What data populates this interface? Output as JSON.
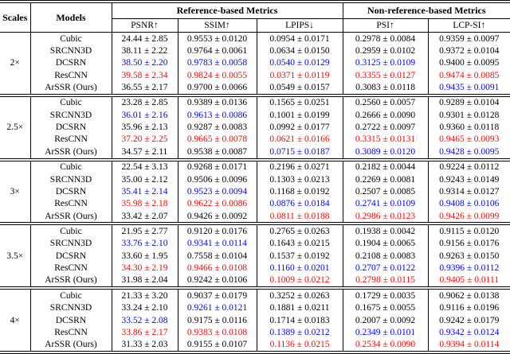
{
  "colors": {
    "best": "#ff0000",
    "second_best": "#0000ff",
    "default_text": "#000000",
    "background": "#ffffff"
  },
  "table": {
    "header": {
      "scales": "Scales",
      "models": "Models",
      "group_ref": "Reference-based Metrics",
      "group_nonref": "Non-reference-based Metrics",
      "metrics": [
        "PSNR↑",
        "SSIM↑",
        "LPIPS↓",
        "PSI↑",
        "LCP-SI↑"
      ]
    },
    "sections": [
      {
        "scale": "2×",
        "rows": [
          {
            "model": "Cubic",
            "values": [
              {
                "text": "24.44 ± 2.85",
                "color": "black"
              },
              {
                "text": "0.9553 ± 0.0120",
                "color": "black"
              },
              {
                "text": "0.0954 ± 0.0171",
                "color": "black"
              },
              {
                "text": "0.2978 ± 0.0084",
                "color": "black"
              },
              {
                "text": "0.9359 ± 0.0097",
                "color": "black"
              }
            ]
          },
          {
            "model": "SRCNN3D",
            "values": [
              {
                "text": "38.11 ± 2.22",
                "color": "black"
              },
              {
                "text": "0.9764 ± 0.0061",
                "color": "black"
              },
              {
                "text": "0.0634 ± 0.0150",
                "color": "black"
              },
              {
                "text": "0.2959 ± 0.0102",
                "color": "black"
              },
              {
                "text": "0.9372 ± 0.0104",
                "color": "black"
              }
            ]
          },
          {
            "model": "DCSRN",
            "values": [
              {
                "text": "38.50 ± 2.20",
                "color": "blue"
              },
              {
                "text": "0.9783 ± 0.0058",
                "color": "blue"
              },
              {
                "text": "0.0540 ± 0.0129",
                "color": "blue"
              },
              {
                "text": "0.3125 ± 0.0109",
                "color": "blue"
              },
              {
                "text": "0.9400 ± 0.0095",
                "color": "black"
              }
            ]
          },
          {
            "model": "ResCNN",
            "values": [
              {
                "text": "39.58 ± 2.34",
                "color": "red"
              },
              {
                "text": "0.9824 ± 0.0055",
                "color": "red"
              },
              {
                "text": "0.0371 ± 0.0119",
                "color": "red"
              },
              {
                "text": "0.3355 ± 0.0127",
                "color": "red"
              },
              {
                "text": "0.9474 ± 0.0085",
                "color": "red"
              }
            ]
          },
          {
            "model": "ArSSR (Ours)",
            "values": [
              {
                "text": "36.55 ± 2.17",
                "color": "black"
              },
              {
                "text": "0.9700 ± 0.0066",
                "color": "black"
              },
              {
                "text": "0.0549 ± 0.0157",
                "color": "black"
              },
              {
                "text": "0.3083 ± 0.0118",
                "color": "black"
              },
              {
                "text": "0.9435 ± 0.0091",
                "color": "blue"
              }
            ]
          }
        ]
      },
      {
        "scale": "2.5×",
        "rows": [
          {
            "model": "Cubic",
            "values": [
              {
                "text": "23.28 ± 2.85",
                "color": "black"
              },
              {
                "text": "0.9389 ± 0.0136",
                "color": "black"
              },
              {
                "text": "0.1565 ± 0.0251",
                "color": "black"
              },
              {
                "text": "0.2560 ± 0.0057",
                "color": "black"
              },
              {
                "text": "0.9289 ± 0.0104",
                "color": "black"
              }
            ]
          },
          {
            "model": "SRCNN3D",
            "values": [
              {
                "text": "36.01 ± 2.16",
                "color": "blue"
              },
              {
                "text": "0.9613 ± 0.0086",
                "color": "blue"
              },
              {
                "text": "0.1001 ± 0.0199",
                "color": "black"
              },
              {
                "text": "0.2666 ± 0.0090",
                "color": "black"
              },
              {
                "text": "0.9301 ± 0.0128",
                "color": "black"
              }
            ]
          },
          {
            "model": "DCSRN",
            "values": [
              {
                "text": "35.96 ± 2.13",
                "color": "black"
              },
              {
                "text": "0.9287 ± 0.0083",
                "color": "black"
              },
              {
                "text": "0.0992 ± 0.0177",
                "color": "black"
              },
              {
                "text": "0.2722 ± 0.0097",
                "color": "black"
              },
              {
                "text": "0.9360 ± 0.0118",
                "color": "black"
              }
            ]
          },
          {
            "model": "ResCNN",
            "values": [
              {
                "text": "37.20 ± 2.25",
                "color": "red"
              },
              {
                "text": "0.9665 ± 0.0078",
                "color": "red"
              },
              {
                "text": "0.0621 ± 0.0166",
                "color": "red"
              },
              {
                "text": "0.3315 ± 0.0131",
                "color": "red"
              },
              {
                "text": "0.9465 ± 0.0093",
                "color": "red"
              }
            ]
          },
          {
            "model": "ArSSR (Ours)",
            "values": [
              {
                "text": "34.57 ± 2.11",
                "color": "black"
              },
              {
                "text": "0.9538 ± 0.0087",
                "color": "black"
              },
              {
                "text": "0.0715 ± 0.0187",
                "color": "blue"
              },
              {
                "text": "0.3089 ± 0.0120",
                "color": "blue"
              },
              {
                "text": "0.9428 ± 0.0095",
                "color": "blue"
              }
            ]
          }
        ]
      },
      {
        "scale": "3×",
        "rows": [
          {
            "model": "Cubic",
            "values": [
              {
                "text": "22.54 ± 3.13",
                "color": "black"
              },
              {
                "text": "0.9268 ± 0.0171",
                "color": "black"
              },
              {
                "text": "0.2196 ± 0.0271",
                "color": "black"
              },
              {
                "text": "0.2182 ± 0.0044",
                "color": "black"
              },
              {
                "text": "0.9224 ± 0.0112",
                "color": "black"
              }
            ]
          },
          {
            "model": "SRCNN3D",
            "values": [
              {
                "text": "35.00 ± 2.12",
                "color": "black"
              },
              {
                "text": "0.9506 ± 0.0096",
                "color": "black"
              },
              {
                "text": "0.1303 ± 0.0213",
                "color": "black"
              },
              {
                "text": "0.2269 ± 0.0081",
                "color": "black"
              },
              {
                "text": "0.9243 ± 0.0149",
                "color": "black"
              }
            ]
          },
          {
            "model": "DCSRN",
            "values": [
              {
                "text": "35.41 ± 2.14",
                "color": "blue"
              },
              {
                "text": "0.9523 ± 0.0094",
                "color": "blue"
              },
              {
                "text": "0.1168 ± 0.0192",
                "color": "black"
              },
              {
                "text": "0.2507 ± 0.0085",
                "color": "black"
              },
              {
                "text": "0.9314 ± 0.0127",
                "color": "black"
              }
            ]
          },
          {
            "model": "ResCNN",
            "values": [
              {
                "text": "35.98 ± 2.18",
                "color": "red"
              },
              {
                "text": "0.9622 ± 0.0086",
                "color": "red"
              },
              {
                "text": "0.0876 ± 0.0184",
                "color": "blue"
              },
              {
                "text": "0.2741 ± 0.0109",
                "color": "blue"
              },
              {
                "text": "0.9408 ± 0.0106",
                "color": "blue"
              }
            ]
          },
          {
            "model": "ArSSR (Ours)",
            "values": [
              {
                "text": "33.42 ± 2.07",
                "color": "black"
              },
              {
                "text": "0.9426 ± 0.0092",
                "color": "black"
              },
              {
                "text": "0.0811 ± 0.0188",
                "color": "red"
              },
              {
                "text": "0.2986 ± 0.0123",
                "color": "red"
              },
              {
                "text": "0.9426 ± 0.0099",
                "color": "red"
              }
            ]
          }
        ]
      },
      {
        "scale": "3.5×",
        "rows": [
          {
            "model": "Cubic",
            "values": [
              {
                "text": "21.95 ± 2.77",
                "color": "black"
              },
              {
                "text": "0.9120 ± 0.0176",
                "color": "black"
              },
              {
                "text": "0.2765 ± 0.0263",
                "color": "black"
              },
              {
                "text": "0.1938 ± 0.0042",
                "color": "black"
              },
              {
                "text": "0.9115 ± 0.0120",
                "color": "black"
              }
            ]
          },
          {
            "model": "SRCNN3D",
            "values": [
              {
                "text": "33.76 ± 2.10",
                "color": "blue"
              },
              {
                "text": "0.9341 ± 0.0114",
                "color": "blue"
              },
              {
                "text": "0.1643 ± 0.0215",
                "color": "black"
              },
              {
                "text": "0.1904 ± 0.0065",
                "color": "black"
              },
              {
                "text": "0.9156 ± 0.0176",
                "color": "black"
              }
            ]
          },
          {
            "model": "DCSRN",
            "values": [
              {
                "text": "33.60 ± 1.95",
                "color": "black"
              },
              {
                "text": "0.7558 ± 0.0104",
                "color": "black"
              },
              {
                "text": "0.1537 ± 0.0192",
                "color": "black"
              },
              {
                "text": "0.2108 ± 0.0083",
                "color": "black"
              },
              {
                "text": "0.9263 ± 0.0150",
                "color": "black"
              }
            ]
          },
          {
            "model": "ResCNN",
            "values": [
              {
                "text": "34.30 ± 2.19",
                "color": "red"
              },
              {
                "text": "0.9466 ± 0.0108",
                "color": "red"
              },
              {
                "text": "0.1160 ± 0.0201",
                "color": "blue"
              },
              {
                "text": "0.2707 ± 0.0122",
                "color": "blue"
              },
              {
                "text": "0.9396 ± 0.0112",
                "color": "blue"
              }
            ]
          },
          {
            "model": "ArSSR (Ours)",
            "values": [
              {
                "text": "31.98 ± 2.04",
                "color": "black"
              },
              {
                "text": "0.9242 ± 0.0106",
                "color": "black"
              },
              {
                "text": "0.1009 ± 0.0212",
                "color": "red"
              },
              {
                "text": "0.2798 ± 0.0115",
                "color": "red"
              },
              {
                "text": "0.9405 ± 0.0111",
                "color": "red"
              }
            ]
          }
        ]
      },
      {
        "scale": "4×",
        "rows": [
          {
            "model": "Cubic",
            "values": [
              {
                "text": "21.33 ± 3.20",
                "color": "black"
              },
              {
                "text": "0.9037 ± 0.0179",
                "color": "black"
              },
              {
                "text": "0.3252 ± 0.0263",
                "color": "black"
              },
              {
                "text": "0.1729 ± 0.0035",
                "color": "black"
              },
              {
                "text": "0.9062 ± 0.0138",
                "color": "black"
              }
            ]
          },
          {
            "model": "SRCNN3D",
            "values": [
              {
                "text": "33.24 ± 2.10",
                "color": "black"
              },
              {
                "text": "0.9261 ± 0.0121",
                "color": "blue"
              },
              {
                "text": "0.1881 ± 0.0211",
                "color": "black"
              },
              {
                "text": "0.1675 ± 0.0055",
                "color": "black"
              },
              {
                "text": "0.9116 ± 0.0196",
                "color": "black"
              }
            ]
          },
          {
            "model": "DCSRN",
            "values": [
              {
                "text": "33.52 ± 2.08",
                "color": "blue"
              },
              {
                "text": "0.9175 ± 0.0116",
                "color": "black"
              },
              {
                "text": "0.1714 ± 0.0183",
                "color": "black"
              },
              {
                "text": "0.2007 ± 0.0092",
                "color": "black"
              },
              {
                "text": "0.9242 ± 0.0179",
                "color": "black"
              }
            ]
          },
          {
            "model": "ResCNN",
            "values": [
              {
                "text": "33.86 ± 2.17",
                "color": "red"
              },
              {
                "text": "0.9383 ± 0.0108",
                "color": "red"
              },
              {
                "text": "0.1389 ± 0.0212",
                "color": "blue"
              },
              {
                "text": "0.2349 ± 0.0101",
                "color": "blue"
              },
              {
                "text": "0.9342 ± 0.0124",
                "color": "blue"
              }
            ]
          },
          {
            "model": "ArSSR (Ours)",
            "values": [
              {
                "text": "31.33 ± 2.03",
                "color": "black"
              },
              {
                "text": "0.9155 ± 0.0107",
                "color": "black"
              },
              {
                "text": "0.1136 ± 0.0215",
                "color": "red"
              },
              {
                "text": "0.2534 ± 0.0090",
                "color": "red"
              },
              {
                "text": "0.9394 ± 0.0114",
                "color": "red"
              }
            ]
          }
        ]
      }
    ]
  }
}
